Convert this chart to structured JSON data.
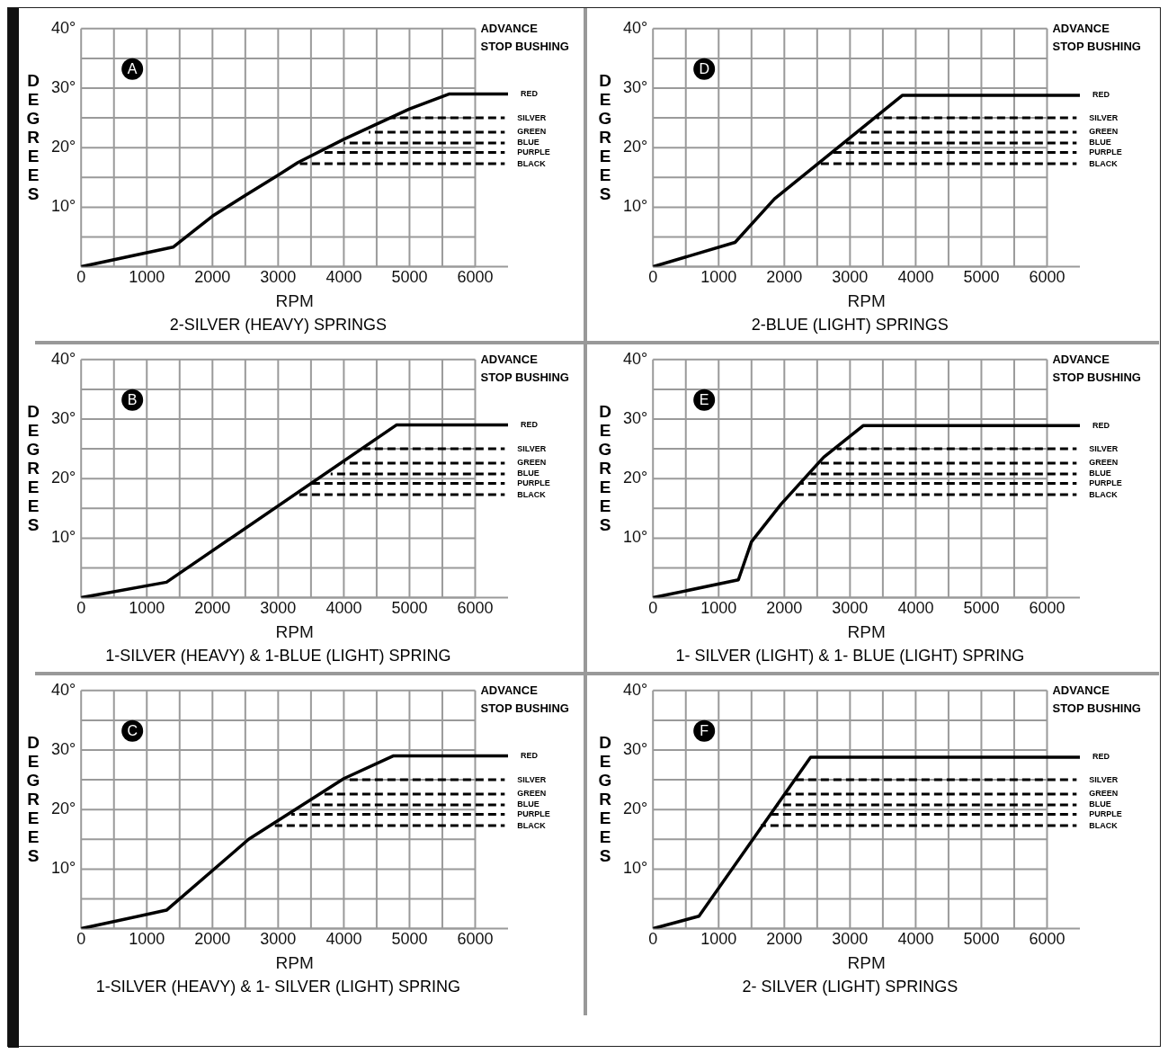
{
  "chart_data": [
    {
      "type": "line",
      "title": "A",
      "subtitle": "2-SILVER (HEAVY) SPRINGS",
      "xlabel": "RPM",
      "ylabel": "DEGREES",
      "annotations": [
        "ADVANCE\nSTOP BUSHING"
      ],
      "marker": "none",
      "grid": true,
      "line_style": "solid",
      "xlim": [
        0,
        6500
      ],
      "xticks": [
        0,
        {
          "value": 500,
          "label": null
        },
        1000,
        {
          "value": 1500,
          "label": null
        },
        2000,
        {
          "value": 2500,
          "label": null
        },
        3000,
        {
          "value": 3500,
          "label": null
        },
        4000,
        {
          "value": 4500,
          "label": null
        },
        5000,
        {
          "value": 5500,
          "label": null
        },
        6000
      ],
      "ylim": [
        0,
        40
      ],
      "yticks": [
        {
          "value": 0,
          "label": null
        },
        {
          "value": 5,
          "label": null
        },
        {
          "value": 10,
          "label": "10°"
        },
        {
          "value": 15,
          "label": null
        },
        {
          "value": 20,
          "label": "20°"
        },
        {
          "value": 25,
          "label": null
        },
        {
          "value": 30,
          "label": "30°"
        },
        {
          "value": 35,
          "label": null
        },
        {
          "value": 40,
          "label": "40°"
        }
      ],
      "series": [
        {
          "name": "RED",
          "color": "#000000",
          "x": [
            0,
            1400,
            2000,
            2500,
            3000,
            3300,
            4000,
            5000,
            5600,
            6500
          ],
          "values": [
            0,
            3.3,
            8.5,
            12,
            15.4,
            17.5,
            21.4,
            26.5,
            29,
            29
          ]
        },
        {
          "name": "SILVER",
          "color": "#000000",
          "line_style": "dashed",
          "x": [
            4700,
            6450
          ],
          "values": [
            25,
            25
          ]
        },
        {
          "name": "GREEN",
          "color": "#000000",
          "line_style": "dashed",
          "x": [
            4380,
            6450
          ],
          "values": [
            22.6,
            22.6
          ]
        },
        {
          "name": "BLUE",
          "color": "#000000",
          "line_style": "dashed",
          "x": [
            4000,
            6450
          ],
          "values": [
            20.8,
            20.8
          ]
        },
        {
          "name": "PURPLE",
          "color": "#000000",
          "line_style": "dashed",
          "x": [
            3690,
            6450
          ],
          "values": [
            19.2,
            19.2
          ]
        },
        {
          "name": "BLACK",
          "color": "#000000",
          "line_style": "dashed",
          "x": [
            3330,
            6450
          ],
          "values": [
            17.3,
            17.3
          ]
        }
      ]
    },
    {
      "type": "line",
      "title": "D",
      "subtitle": "2-BLUE (LIGHT) SPRINGS",
      "xlabel": "RPM",
      "ylabel": "DEGREES",
      "annotations": [
        "ADVANCE\nSTOP BUSHING"
      ],
      "marker": "none",
      "grid": true,
      "line_style": "solid",
      "xlim": [
        0,
        6500
      ],
      "xticks": [
        0,
        {
          "value": 500,
          "label": null
        },
        1000,
        {
          "value": 1500,
          "label": null
        },
        2000,
        {
          "value": 2500,
          "label": null
        },
        3000,
        {
          "value": 3500,
          "label": null
        },
        4000,
        {
          "value": 4500,
          "label": null
        },
        5000,
        {
          "value": 5500,
          "label": null
        },
        6000
      ],
      "ylim": [
        0,
        40
      ],
      "yticks": [
        {
          "value": 0,
          "label": null
        },
        {
          "value": 5,
          "label": null
        },
        {
          "value": 10,
          "label": "10°"
        },
        {
          "value": 15,
          "label": null
        },
        {
          "value": 20,
          "label": "20°"
        },
        {
          "value": 25,
          "label": null
        },
        {
          "value": 30,
          "label": "30°"
        },
        {
          "value": 35,
          "label": null
        },
        {
          "value": 40,
          "label": "40°"
        }
      ],
      "series": [
        {
          "name": "RED",
          "color": "#000000",
          "x": [
            0,
            1250,
            1850,
            3800,
            6500
          ],
          "values": [
            0,
            4.1,
            11.4,
            28.8,
            28.8
          ]
        },
        {
          "name": "SILVER",
          "color": "#000000",
          "line_style": "dashed",
          "x": [
            3400,
            6450
          ],
          "values": [
            25,
            25
          ]
        },
        {
          "name": "GREEN",
          "color": "#000000",
          "line_style": "dashed",
          "x": [
            3150,
            6450
          ],
          "values": [
            22.6,
            22.6
          ]
        },
        {
          "name": "BLUE",
          "color": "#000000",
          "line_style": "dashed",
          "x": [
            2900,
            6450
          ],
          "values": [
            20.8,
            20.8
          ]
        },
        {
          "name": "PURPLE",
          "color": "#000000",
          "line_style": "dashed",
          "x": [
            2700,
            6450
          ],
          "values": [
            19.2,
            19.2
          ]
        },
        {
          "name": "BLACK",
          "color": "#000000",
          "line_style": "dashed",
          "x": [
            2500,
            6450
          ],
          "values": [
            17.3,
            17.3
          ]
        }
      ]
    },
    {
      "type": "line",
      "title": "B",
      "subtitle": "1-SILVER (HEAVY) & 1-BLUE (LIGHT) SPRING",
      "xlabel": "RPM",
      "ylabel": "DEGREES",
      "annotations": [
        "ADVANCE\nSTOP BUSHING"
      ],
      "marker": "none",
      "grid": true,
      "line_style": "solid",
      "xlim": [
        0,
        6500
      ],
      "xticks": [
        0,
        {
          "value": 500,
          "label": null
        },
        1000,
        {
          "value": 1500,
          "label": null
        },
        2000,
        {
          "value": 2500,
          "label": null
        },
        3000,
        {
          "value": 3500,
          "label": null
        },
        4000,
        {
          "value": 4500,
          "label": null
        },
        5000,
        {
          "value": 5500,
          "label": null
        },
        6000
      ],
      "ylim": [
        0,
        40
      ],
      "yticks": [
        {
          "value": 0,
          "label": null
        },
        {
          "value": 5,
          "label": null
        },
        {
          "value": 10,
          "label": "10°"
        },
        {
          "value": 15,
          "label": null
        },
        {
          "value": 20,
          "label": "20°"
        },
        {
          "value": 25,
          "label": null
        },
        {
          "value": 30,
          "label": "30°"
        },
        {
          "value": 35,
          "label": null
        },
        {
          "value": 40,
          "label": "40°"
        }
      ],
      "series": [
        {
          "name": "RED",
          "color": "#000000",
          "x": [
            0,
            1300,
            4800,
            6500
          ],
          "values": [
            0,
            2.6,
            29,
            29
          ]
        },
        {
          "name": "SILVER",
          "color": "#000000",
          "line_style": "dashed",
          "x": [
            4300,
            6450
          ],
          "values": [
            25,
            25
          ]
        },
        {
          "name": "GREEN",
          "color": "#000000",
          "line_style": "dashed",
          "x": [
            4000,
            6450
          ],
          "values": [
            22.6,
            22.6
          ]
        },
        {
          "name": "BLUE",
          "color": "#000000",
          "line_style": "dashed",
          "x": [
            3800,
            6450
          ],
          "values": [
            20.8,
            20.8
          ]
        },
        {
          "name": "PURPLE",
          "color": "#000000",
          "line_style": "dashed",
          "x": [
            3500,
            6450
          ],
          "values": [
            19.2,
            19.2
          ]
        },
        {
          "name": "BLACK",
          "color": "#000000",
          "line_style": "dashed",
          "x": [
            3250,
            6450
          ],
          "values": [
            17.3,
            17.3
          ]
        }
      ]
    },
    {
      "type": "line",
      "title": "E",
      "subtitle": "1- SILVER (LIGHT) & 1- BLUE (LIGHT) SPRING",
      "xlabel": "RPM",
      "ylabel": "DEGREES",
      "annotations": [
        "ADVANCE\nSTOP BUSHING"
      ],
      "marker": "none",
      "grid": true,
      "line_style": "solid",
      "xlim": [
        0,
        6500
      ],
      "xticks": [
        0,
        {
          "value": 500,
          "label": null
        },
        1000,
        {
          "value": 1500,
          "label": null
        },
        2000,
        {
          "value": 2500,
          "label": null
        },
        3000,
        {
          "value": 3500,
          "label": null
        },
        4000,
        {
          "value": 4500,
          "label": null
        },
        5000,
        {
          "value": 5500,
          "label": null
        },
        6000
      ],
      "ylim": [
        0,
        40
      ],
      "yticks": [
        {
          "value": 0,
          "label": null
        },
        {
          "value": 5,
          "label": null
        },
        {
          "value": 10,
          "label": "10°"
        },
        {
          "value": 15,
          "label": null
        },
        {
          "value": 20,
          "label": "20°"
        },
        {
          "value": 25,
          "label": null
        },
        {
          "value": 30,
          "label": "30°"
        },
        {
          "value": 35,
          "label": null
        },
        {
          "value": 40,
          "label": "40°"
        }
      ],
      "series": [
        {
          "name": "RED",
          "color": "#000000",
          "x": [
            0,
            1300,
            1500,
            1950,
            2600,
            3200,
            6500
          ],
          "values": [
            0,
            3,
            9.4,
            15.7,
            23.6,
            28.9,
            28.9
          ]
        },
        {
          "name": "SILVER",
          "color": "#000000",
          "line_style": "dashed",
          "x": [
            2800,
            6450
          ],
          "values": [
            25,
            25
          ]
        },
        {
          "name": "GREEN",
          "color": "#000000",
          "line_style": "dashed",
          "x": [
            2550,
            6450
          ],
          "values": [
            22.6,
            22.6
          ]
        },
        {
          "name": "BLUE",
          "color": "#000000",
          "line_style": "dashed",
          "x": [
            2400,
            6450
          ],
          "values": [
            20.8,
            20.8
          ]
        },
        {
          "name": "PURPLE",
          "color": "#000000",
          "line_style": "dashed",
          "x": [
            2250,
            6450
          ],
          "values": [
            19.2,
            19.2
          ]
        },
        {
          "name": "BLACK",
          "color": "#000000",
          "line_style": "dashed",
          "x": [
            2100,
            6450
          ],
          "values": [
            17.3,
            17.3
          ]
        }
      ]
    },
    {
      "type": "line",
      "title": "C",
      "subtitle": "1-SILVER (HEAVY) & 1- SILVER (LIGHT) SPRING",
      "xlabel": "RPM",
      "ylabel": "DEGREES",
      "annotations": [
        "ADVANCE\nSTOP BUSHING"
      ],
      "marker": "none",
      "grid": true,
      "line_style": "solid",
      "xlim": [
        0,
        6500
      ],
      "xticks": [
        0,
        {
          "value": 500,
          "label": null
        },
        1000,
        {
          "value": 1500,
          "label": null
        },
        2000,
        {
          "value": 2500,
          "label": null
        },
        3000,
        {
          "value": 3500,
          "label": null
        },
        4000,
        {
          "value": 4500,
          "label": null
        },
        5000,
        {
          "value": 5500,
          "label": null
        },
        6000
      ],
      "ylim": [
        0,
        40
      ],
      "yticks": [
        {
          "value": 0,
          "label": null
        },
        {
          "value": 5,
          "label": null
        },
        {
          "value": 10,
          "label": "10°"
        },
        {
          "value": 15,
          "label": null
        },
        {
          "value": 20,
          "label": "20°"
        },
        {
          "value": 25,
          "label": null
        },
        {
          "value": 30,
          "label": "30°"
        },
        {
          "value": 35,
          "label": null
        },
        {
          "value": 40,
          "label": "40°"
        }
      ],
      "series": [
        {
          "name": "RED",
          "color": "#000000",
          "x": [
            0,
            1300,
            2550,
            4000,
            4750,
            6500
          ],
          "values": [
            0,
            3.1,
            15,
            25.2,
            29,
            29
          ]
        },
        {
          "name": "SILVER",
          "color": "#000000",
          "line_style": "dashed",
          "x": [
            4050,
            6450
          ],
          "values": [
            25,
            25
          ]
        },
        {
          "name": "GREEN",
          "color": "#000000",
          "line_style": "dashed",
          "x": [
            3650,
            6450
          ],
          "values": [
            22.6,
            22.6
          ]
        },
        {
          "name": "BLUE",
          "color": "#000000",
          "line_style": "dashed",
          "x": [
            3450,
            6450
          ],
          "values": [
            20.8,
            20.8
          ]
        },
        {
          "name": "PURPLE",
          "color": "#000000",
          "line_style": "dashed",
          "x": [
            3200,
            6450
          ],
          "values": [
            19.2,
            19.2
          ]
        },
        {
          "name": "BLACK",
          "color": "#000000",
          "line_style": "dashed",
          "x": [
            2950,
            6450
          ],
          "values": [
            17.3,
            17.3
          ]
        }
      ]
    },
    {
      "type": "line",
      "title": "F",
      "subtitle": "2- SILVER (LIGHT) SPRINGS",
      "xlabel": "RPM",
      "ylabel": "DEGREES",
      "annotations": [
        "ADVANCE\nSTOP BUSHING"
      ],
      "marker": "none",
      "grid": true,
      "line_style": "solid",
      "xlim": [
        0,
        6500
      ],
      "xticks": [
        0,
        {
          "value": 500,
          "label": null
        },
        1000,
        {
          "value": 1500,
          "label": null
        },
        2000,
        {
          "value": 2500,
          "label": null
        },
        3000,
        {
          "value": 3500,
          "label": null
        },
        4000,
        {
          "value": 4500,
          "label": null
        },
        5000,
        {
          "value": 5500,
          "label": null
        },
        6000
      ],
      "ylim": [
        0,
        40
      ],
      "yticks": [
        {
          "value": 0,
          "label": null
        },
        {
          "value": 5,
          "label": null
        },
        {
          "value": 10,
          "label": "10°"
        },
        {
          "value": 15,
          "label": null
        },
        {
          "value": 20,
          "label": "20°"
        },
        {
          "value": 25,
          "label": null
        },
        {
          "value": 30,
          "label": "30°"
        },
        {
          "value": 35,
          "label": null
        },
        {
          "value": 40,
          "label": "40°"
        }
      ],
      "series": [
        {
          "name": "RED",
          "color": "#000000",
          "x": [
            0,
            700,
            2400,
            6500
          ],
          "values": [
            0,
            2.1,
            28.8,
            28.8
          ]
        },
        {
          "name": "SILVER",
          "color": "#000000",
          "line_style": "dashed",
          "x": [
            2150,
            6450
          ],
          "values": [
            25,
            25
          ]
        },
        {
          "name": "GREEN",
          "color": "#000000",
          "line_style": "dashed",
          "x": [
            2000,
            6450
          ],
          "values": [
            22.6,
            22.6
          ]
        },
        {
          "name": "BLUE",
          "color": "#000000",
          "line_style": "dashed",
          "x": [
            1880,
            6450
          ],
          "values": [
            20.8,
            20.8
          ]
        },
        {
          "name": "PURPLE",
          "color": "#000000",
          "line_style": "dashed",
          "x": [
            1770,
            6450
          ],
          "values": [
            19.2,
            19.2
          ]
        },
        {
          "name": "BLACK",
          "color": "#000000",
          "line_style": "dashed",
          "x": [
            1640,
            6450
          ],
          "values": [
            17.3,
            17.3
          ]
        }
      ]
    }
  ]
}
